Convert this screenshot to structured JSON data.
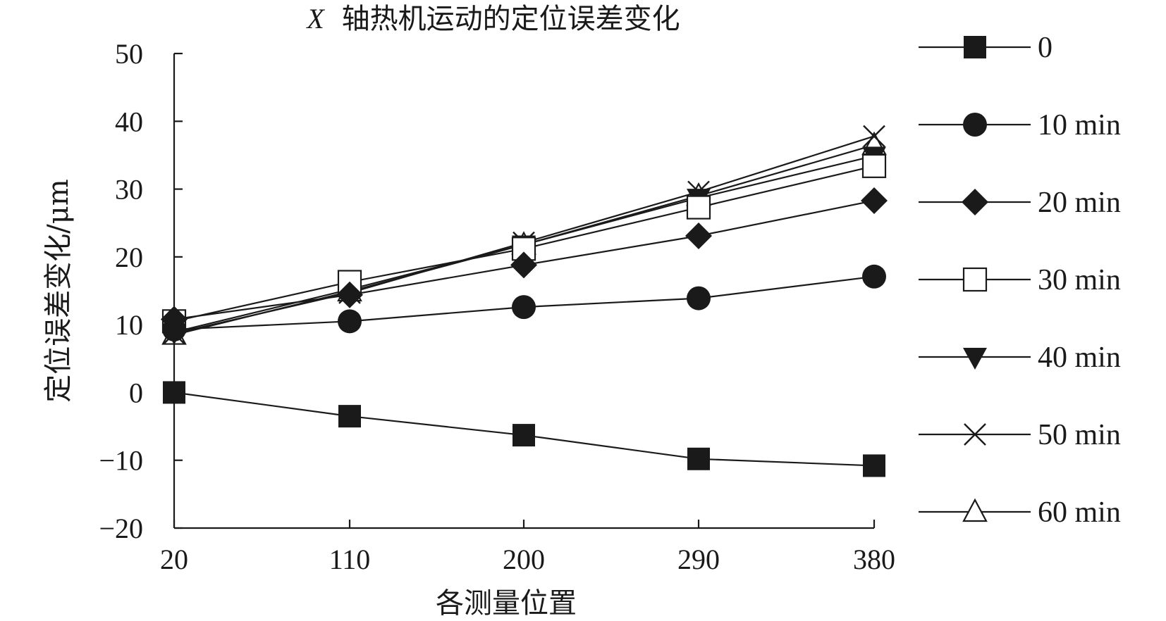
{
  "chart_data": {
    "type": "line",
    "title_prefix": "X",
    "title": "轴热机运动的定位误差变化",
    "xlabel": "各测量位置",
    "ylabel": "定位误差变化/μm",
    "categories": [
      "20",
      "110",
      "200",
      "290",
      "380"
    ],
    "ylim": [
      -20,
      50
    ],
    "yticks": [
      "−20",
      "−10",
      "0",
      "10",
      "20",
      "30",
      "40",
      "50"
    ],
    "ytick_values": [
      -20,
      -10,
      0,
      10,
      20,
      30,
      40,
      50
    ],
    "grid": false,
    "legend_position": "right",
    "series": [
      {
        "name": "0",
        "marker": "square-filled",
        "values": [
          0,
          -3.5,
          -6.3,
          -9.8,
          -10.8
        ]
      },
      {
        "name": "10 min",
        "marker": "circle-filled",
        "values": [
          9.3,
          10.5,
          12.6,
          13.9,
          17.1
        ]
      },
      {
        "name": "20 min",
        "marker": "diamond-filled",
        "values": [
          10.8,
          14.4,
          18.8,
          23.1,
          28.3
        ]
      },
      {
        "name": "30 min",
        "marker": "square-open",
        "values": [
          10.5,
          16.3,
          21.2,
          27.3,
          33.4
        ]
      },
      {
        "name": "40 min",
        "marker": "triangle-down-filled",
        "values": [
          8.9,
          15.2,
          21.8,
          28.7,
          34.9
        ]
      },
      {
        "name": "50 min",
        "marker": "x",
        "values": [
          8.7,
          14.7,
          22.1,
          29.6,
          37.8
        ]
      },
      {
        "name": "60 min",
        "marker": "triangle-up-open",
        "values": [
          8.5,
          14.9,
          21.8,
          29.0,
          36.5
        ]
      }
    ]
  }
}
